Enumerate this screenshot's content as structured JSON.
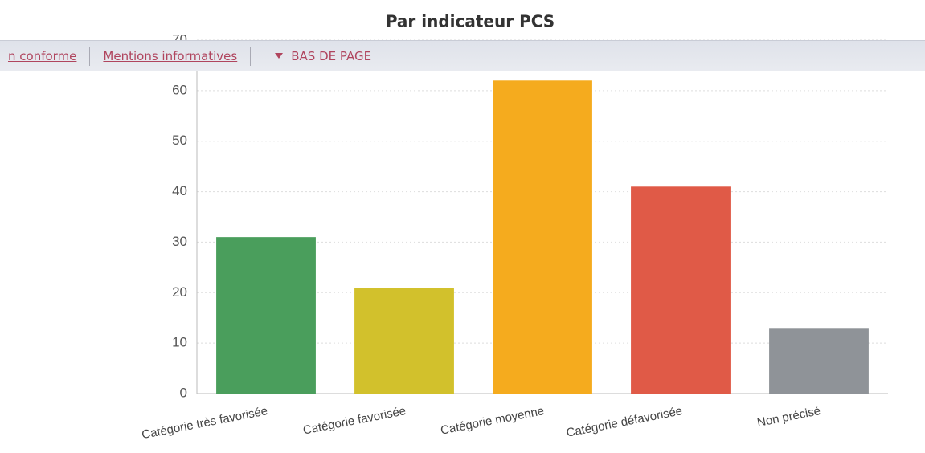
{
  "nav": [
    "n conforme",
    "Mentions informatives",
    "BAS DE PAGE"
  ],
  "chart_data": {
    "type": "bar",
    "title": "Par indicateur PCS",
    "categories": [
      "Catégorie très favorisée",
      "Catégorie favorisée",
      "Catégorie moyenne",
      "Catégorie défavorisée",
      "Non précisé"
    ],
    "values": [
      31,
      21,
      62,
      41,
      13
    ],
    "colors": [
      "#4a9e5c",
      "#d2c12c",
      "#f5ab1e",
      "#e05a47",
      "#8f9398"
    ],
    "ylim": [
      0,
      70
    ],
    "yticks": [
      0,
      10,
      20,
      30,
      40,
      50,
      60,
      70
    ],
    "grid": true
  }
}
